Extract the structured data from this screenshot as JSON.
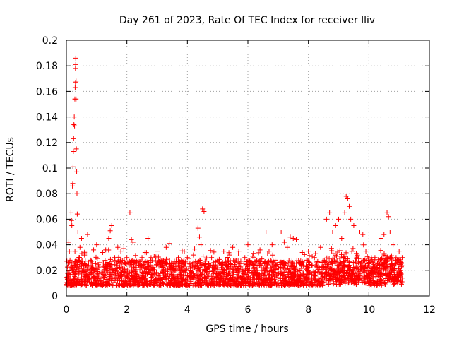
{
  "chart_data": {
    "type": "scatter",
    "title": "Day 261 of 2023, Rate Of TEC Index for receiver lliv",
    "xlabel": "GPS time / hours",
    "ylabel": "ROTI / TECUs",
    "xlim": [
      0,
      12
    ],
    "ylim": [
      0,
      0.2
    ],
    "x_ticks": [
      0,
      2,
      4,
      6,
      8,
      10,
      12
    ],
    "y_ticks": [
      0,
      0.02,
      0.04,
      0.06,
      0.08,
      0.1,
      0.12,
      0.14,
      0.16,
      0.18,
      0.2
    ],
    "x_tick_labels": [
      "0",
      "2",
      "4",
      "6",
      "8",
      "10",
      "12"
    ],
    "y_tick_labels": [
      "0",
      "0.02",
      "0.04",
      "0.06",
      "0.08",
      "0.1",
      "0.12",
      "0.14",
      "0.16",
      "0.18",
      "0.2"
    ],
    "grid": true,
    "marker": "+",
    "marker_color": "#ff0000",
    "series": [
      {
        "name": "ROTI",
        "points": [
          [
            0.05,
            0.018
          ],
          [
            0.08,
            0.042
          ],
          [
            0.1,
            0.035
          ],
          [
            0.12,
            0.028
          ],
          [
            0.15,
            0.065
          ],
          [
            0.17,
            0.059
          ],
          [
            0.18,
            0.055
          ],
          [
            0.2,
            0.086
          ],
          [
            0.21,
            0.088
          ],
          [
            0.22,
            0.101
          ],
          [
            0.23,
            0.113
          ],
          [
            0.24,
            0.123
          ],
          [
            0.25,
            0.134
          ],
          [
            0.26,
            0.14
          ],
          [
            0.27,
            0.133
          ],
          [
            0.28,
            0.154
          ],
          [
            0.29,
            0.163
          ],
          [
            0.3,
            0.167
          ],
          [
            0.3,
            0.178
          ],
          [
            0.31,
            0.181
          ],
          [
            0.31,
            0.186
          ],
          [
            0.32,
            0.154
          ],
          [
            0.32,
            0.168
          ],
          [
            0.33,
            0.115
          ],
          [
            0.34,
            0.097
          ],
          [
            0.35,
            0.08
          ],
          [
            0.36,
            0.064
          ],
          [
            0.38,
            0.05
          ],
          [
            0.4,
            0.03
          ],
          [
            0.45,
            0.038
          ],
          [
            0.5,
            0.045
          ],
          [
            0.55,
            0.025
          ],
          [
            0.6,
            0.032
          ],
          [
            0.7,
            0.048
          ],
          [
            0.8,
            0.028
          ],
          [
            0.9,
            0.036
          ],
          [
            1.0,
            0.04
          ],
          [
            1.2,
            0.034
          ],
          [
            1.3,
            0.036
          ],
          [
            1.4,
            0.045
          ],
          [
            1.45,
            0.051
          ],
          [
            1.5,
            0.055
          ],
          [
            1.6,
            0.03
          ],
          [
            1.7,
            0.038
          ],
          [
            1.8,
            0.035
          ],
          [
            1.9,
            0.037
          ],
          [
            2.0,
            0.03
          ],
          [
            2.1,
            0.065
          ],
          [
            2.15,
            0.044
          ],
          [
            2.2,
            0.042
          ],
          [
            2.3,
            0.028
          ],
          [
            2.5,
            0.03
          ],
          [
            2.6,
            0.034
          ],
          [
            2.7,
            0.045
          ],
          [
            2.8,
            0.03
          ],
          [
            3.0,
            0.035
          ],
          [
            3.1,
            0.028
          ],
          [
            3.3,
            0.038
          ],
          [
            3.4,
            0.041
          ],
          [
            3.6,
            0.025
          ],
          [
            3.7,
            0.03
          ],
          [
            3.8,
            0.028
          ],
          [
            3.9,
            0.035
          ],
          [
            4.0,
            0.03
          ],
          [
            4.2,
            0.032
          ],
          [
            4.35,
            0.053
          ],
          [
            4.4,
            0.046
          ],
          [
            4.45,
            0.04
          ],
          [
            4.5,
            0.068
          ],
          [
            4.55,
            0.066
          ],
          [
            4.7,
            0.025
          ],
          [
            4.8,
            0.03
          ],
          [
            5.0,
            0.028
          ],
          [
            5.2,
            0.035
          ],
          [
            5.4,
            0.032
          ],
          [
            5.5,
            0.038
          ],
          [
            5.7,
            0.035
          ],
          [
            5.9,
            0.03
          ],
          [
            6.0,
            0.04
          ],
          [
            6.2,
            0.03
          ],
          [
            6.4,
            0.036
          ],
          [
            6.6,
            0.05
          ],
          [
            6.7,
            0.035
          ],
          [
            6.8,
            0.04
          ],
          [
            6.9,
            0.028
          ],
          [
            7.1,
            0.05
          ],
          [
            7.2,
            0.042
          ],
          [
            7.3,
            0.038
          ],
          [
            7.4,
            0.046
          ],
          [
            7.5,
            0.045
          ],
          [
            7.6,
            0.044
          ],
          [
            7.8,
            0.034
          ],
          [
            8.0,
            0.035
          ],
          [
            8.2,
            0.03
          ],
          [
            8.4,
            0.038
          ],
          [
            8.6,
            0.06
          ],
          [
            8.7,
            0.065
          ],
          [
            8.8,
            0.05
          ],
          [
            8.9,
            0.055
          ],
          [
            9.0,
            0.06
          ],
          [
            9.1,
            0.045
          ],
          [
            9.2,
            0.065
          ],
          [
            9.25,
            0.078
          ],
          [
            9.3,
            0.076
          ],
          [
            9.35,
            0.07
          ],
          [
            9.4,
            0.06
          ],
          [
            9.5,
            0.055
          ],
          [
            9.6,
            0.03
          ],
          [
            9.7,
            0.05
          ],
          [
            9.8,
            0.048
          ],
          [
            9.9,
            0.035
          ],
          [
            10.0,
            0.028
          ],
          [
            10.2,
            0.03
          ],
          [
            10.4,
            0.045
          ],
          [
            10.5,
            0.048
          ],
          [
            10.6,
            0.065
          ],
          [
            10.65,
            0.062
          ],
          [
            10.7,
            0.05
          ],
          [
            10.8,
            0.04
          ],
          [
            10.9,
            0.03
          ],
          [
            11.0,
            0.035
          ],
          [
            11.1,
            0.03
          ]
        ]
      }
    ]
  }
}
